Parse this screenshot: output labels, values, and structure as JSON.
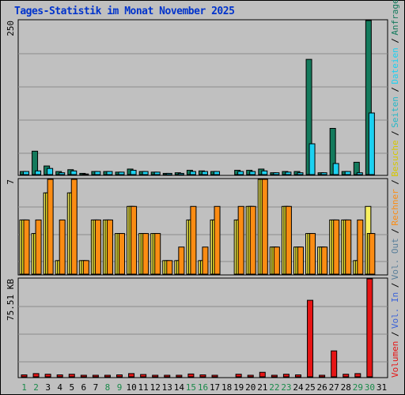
{
  "title": "Tages-Statistik im Monat November 2025",
  "colors": {
    "background": "#c0c0c0",
    "grid": "#8c8c8c",
    "anfragen": "#137a5c",
    "dateien": "#1cd1f1",
    "seiten": "#25b8c8",
    "besuche": "#f2e626",
    "rechner": "#fb8c13",
    "volumen": "#e61515",
    "weekday_label": "#000000",
    "weekend_label": "#1a8a4a",
    "title": "#0033cc"
  },
  "chart_data": [
    {
      "type": "bar",
      "panel": "top",
      "ymax_label": "250",
      "ylim": [
        0,
        250
      ],
      "x": [
        1,
        2,
        3,
        4,
        5,
        6,
        7,
        8,
        9,
        10,
        11,
        12,
        13,
        14,
        15,
        16,
        17,
        18,
        19,
        20,
        21,
        22,
        23,
        24,
        25,
        26,
        27,
        28,
        29,
        30,
        31
      ],
      "series": [
        {
          "name": "Anfragen",
          "values": [
            5,
            38,
            14,
            5,
            8,
            2,
            5,
            5,
            4,
            9,
            5,
            4,
            2,
            3,
            7,
            6,
            5,
            0,
            7,
            7,
            9,
            3,
            5,
            5,
            187,
            3,
            75,
            5,
            20,
            250,
            0
          ]
        },
        {
          "name": "Dateien",
          "values": [
            5,
            6,
            10,
            3,
            6,
            1,
            5,
            5,
            4,
            7,
            5,
            4,
            2,
            2,
            5,
            5,
            5,
            0,
            5,
            5,
            6,
            3,
            4,
            3,
            50,
            3,
            18,
            5,
            3,
            100,
            0
          ]
        }
      ]
    },
    {
      "type": "bar",
      "panel": "middle",
      "ymax_label": "7",
      "ylim": [
        0,
        7
      ],
      "x": [
        1,
        2,
        3,
        4,
        5,
        6,
        7,
        8,
        9,
        10,
        11,
        12,
        13,
        14,
        15,
        16,
        17,
        18,
        19,
        20,
        21,
        22,
        23,
        24,
        25,
        26,
        27,
        28,
        29,
        30,
        31
      ],
      "series": [
        {
          "name": "Seiten",
          "values": [
            4,
            3,
            6,
            1,
            6,
            1,
            4,
            4,
            3,
            5,
            3,
            3,
            1,
            1,
            4,
            1,
            4,
            0,
            4,
            5,
            7,
            2,
            5,
            2,
            3,
            2,
            4,
            4,
            1,
            5,
            0
          ]
        },
        {
          "name": "Besuche",
          "values": [
            4,
            3,
            6,
            1,
            6,
            1,
            4,
            4,
            3,
            5,
            3,
            3,
            1,
            1,
            4,
            1,
            4,
            0,
            4,
            5,
            7,
            2,
            5,
            2,
            3,
            2,
            4,
            4,
            1,
            3,
            0
          ]
        },
        {
          "name": "Rechner",
          "values": [
            4,
            4,
            7,
            4,
            7,
            1,
            4,
            4,
            3,
            5,
            3,
            3,
            1,
            2,
            5,
            2,
            5,
            0,
            5,
            5,
            7,
            2,
            5,
            2,
            3,
            2,
            4,
            4,
            4,
            3,
            0
          ]
        }
      ]
    },
    {
      "type": "bar",
      "panel": "bottom",
      "ymax_label": "75.51 KB",
      "ylim": [
        0,
        75.51
      ],
      "x": [
        1,
        2,
        3,
        4,
        5,
        6,
        7,
        8,
        9,
        10,
        11,
        12,
        13,
        14,
        15,
        16,
        17,
        18,
        19,
        20,
        21,
        22,
        23,
        24,
        25,
        26,
        27,
        28,
        29,
        30,
        31
      ],
      "series": [
        {
          "name": "Volumen",
          "values": [
            1.5,
            2.5,
            2,
            1.5,
            2,
            0.8,
            1.2,
            1.2,
            1.5,
            2.5,
            1.8,
            1.2,
            0.8,
            0.8,
            2.2,
            1.5,
            1.2,
            0,
            2,
            1,
            3.5,
            1,
            2,
            1.5,
            59,
            1.2,
            20,
            2,
            2.5,
            75.51,
            0
          ]
        }
      ]
    }
  ],
  "legend": [
    {
      "label": "Anfragen",
      "color": "#137a5c"
    },
    {
      "label": "Dateien",
      "color": "#1cd1f1"
    },
    {
      "label": "Seiten",
      "color": "#25b8c8"
    },
    {
      "label": "Besuche",
      "color": "#d6c800"
    },
    {
      "label": "Rechner",
      "color": "#fb8c13"
    },
    {
      "label": "Vol. Out",
      "color": "#5a7f9a"
    },
    {
      "label": "Vol. In",
      "color": "#3a62d8"
    },
    {
      "label": "Volumen",
      "color": "#e61515"
    }
  ],
  "weekend_days": [
    1,
    2,
    8,
    9,
    15,
    16,
    22,
    23,
    29,
    30
  ]
}
